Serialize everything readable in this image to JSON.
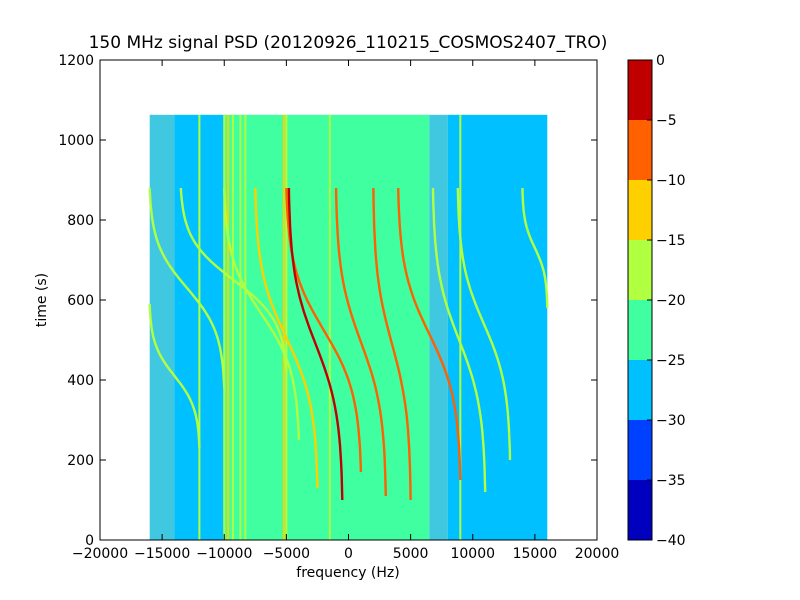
{
  "chart_data": {
    "type": "heatmap",
    "title": "150 MHz signal PSD (20120926_110215_COSMOS2407_TRO)",
    "xlabel": "frequency (Hz)",
    "ylabel": "time (s)",
    "xlim": [
      -20000,
      20000
    ],
    "ylim": [
      0,
      1200
    ],
    "x_ticks": [
      -20000,
      -15000,
      -10000,
      -5000,
      0,
      5000,
      10000,
      15000,
      20000
    ],
    "x_tick_labels": [
      "−20000",
      "−15000",
      "−10000",
      "−5000",
      "0",
      "5000",
      "10000",
      "15000",
      "20000"
    ],
    "y_ticks": [
      0,
      200,
      400,
      600,
      800,
      1000,
      1200
    ],
    "y_tick_labels": [
      "0",
      "200",
      "400",
      "600",
      "800",
      "1000",
      "1200"
    ],
    "data_extent": {
      "x": [
        -16000,
        16000
      ],
      "y": [
        0,
        1063
      ]
    },
    "colorbar": {
      "levels": [
        -40,
        -35,
        -30,
        -25,
        -20,
        -15,
        -10,
        -5,
        0
      ],
      "tick_labels": [
        "−40",
        "−35",
        "−30",
        "−25",
        "−20",
        "−15",
        "−10",
        "−5",
        "0"
      ],
      "colors": [
        "#0000bf",
        "#0040ff",
        "#00c0ff",
        "#40ffa0",
        "#b0ff40",
        "#ffd000",
        "#ff6000",
        "#c00000"
      ]
    },
    "background_regions": [
      {
        "x": [
          -16000,
          -14000
        ],
        "level": "#40c8e0"
      },
      {
        "x": [
          -14000,
          -10000
        ],
        "level": "#00c0ff"
      },
      {
        "x": [
          -10000,
          6500
        ],
        "level": "#40ffa0"
      },
      {
        "x": [
          6500,
          8000
        ],
        "level": "#40c8e0"
      },
      {
        "x": [
          8000,
          16000
        ],
        "level": "#00c0ff"
      }
    ],
    "vertical_lines": [
      {
        "x": -12000,
        "color": "#b0ff40"
      },
      {
        "x": -10000,
        "color": "#b0ff40"
      },
      {
        "x": -9700,
        "color": "#ffd000"
      },
      {
        "x": -9300,
        "color": "#b0ff40"
      },
      {
        "x": -8700,
        "color": "#b0ff40"
      },
      {
        "x": -8300,
        "color": "#b0ff40"
      },
      {
        "x": -5200,
        "color": "#ffd000"
      },
      {
        "x": -5000,
        "color": "#b0ff40"
      },
      {
        "x": -1500,
        "color": "#b0ff40"
      },
      {
        "x": 9000,
        "color": "#b0ff40"
      }
    ],
    "doppler_tracks": [
      {
        "f_start": -16000,
        "t_start": 880,
        "f_end": -10000,
        "t_end": 380,
        "color": "#b0ff40"
      },
      {
        "f_start": -16000,
        "t_start": 590,
        "f_end": -12000,
        "t_end": 230,
        "color": "#b0ff40"
      },
      {
        "f_start": -13500,
        "t_start": 880,
        "f_end": -5000,
        "t_end": 420,
        "color": "#b0ff40"
      },
      {
        "f_start": -10000,
        "t_start": 880,
        "f_end": -4000,
        "t_end": 250,
        "color": "#b0ff40"
      },
      {
        "f_start": -7500,
        "t_start": 880,
        "f_end": -2500,
        "t_end": 130,
        "color": "#ffd000"
      },
      {
        "f_start": -5000,
        "t_start": 880,
        "f_end": 1000,
        "t_end": 170,
        "color": "#ff6000"
      },
      {
        "f_start": -4800,
        "t_start": 880,
        "f_end": -500,
        "t_end": 100,
        "color": "#c00000"
      },
      {
        "f_start": -1000,
        "t_start": 880,
        "f_end": 3000,
        "t_end": 110,
        "color": "#ff6000"
      },
      {
        "f_start": 2000,
        "t_start": 880,
        "f_end": 5000,
        "t_end": 100,
        "color": "#ff6000"
      },
      {
        "f_start": 4000,
        "t_start": 880,
        "f_end": 9000,
        "t_end": 150,
        "color": "#ff6000"
      },
      {
        "f_start": 6800,
        "t_start": 880,
        "f_end": 11000,
        "t_end": 120,
        "color": "#b0ff40"
      },
      {
        "f_start": 8800,
        "t_start": 880,
        "f_end": 13000,
        "t_end": 200,
        "color": "#b0ff40"
      },
      {
        "f_start": 14000,
        "t_start": 880,
        "f_end": 16000,
        "t_end": 580,
        "color": "#b0ff40"
      }
    ]
  }
}
